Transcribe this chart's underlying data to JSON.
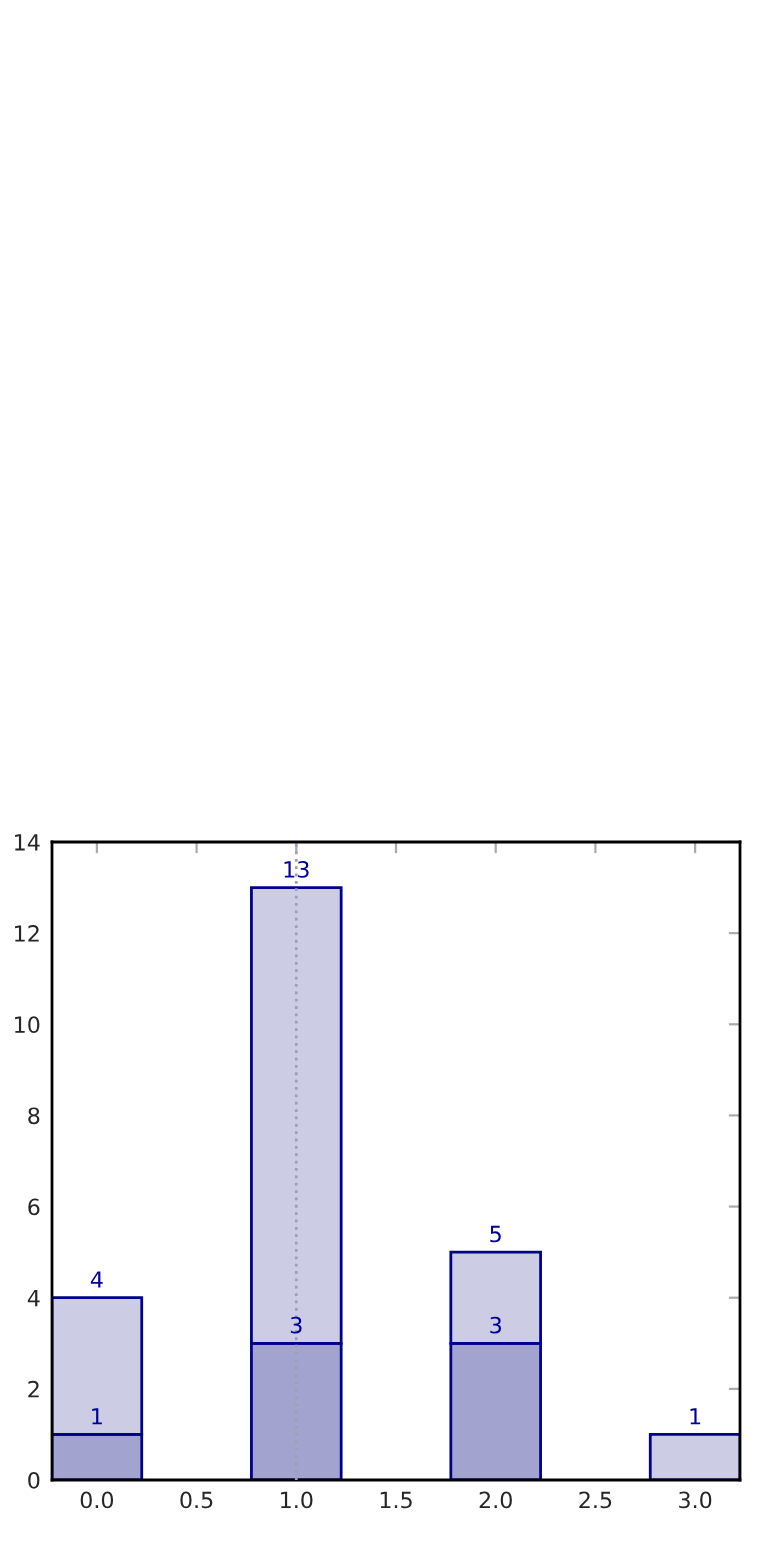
{
  "chart_data": {
    "type": "bar",
    "x": [
      0,
      1,
      2,
      3
    ],
    "stacked": true,
    "series": [
      {
        "color": "#a3a3d0",
        "values": [
          1,
          3,
          3,
          null
        ],
        "value_labels": [
          "1",
          "3",
          "3",
          null
        ]
      },
      {
        "color": "#cccce4",
        "values": [
          3,
          10,
          2,
          1
        ]
      }
    ],
    "totals": [
      "4",
      "13",
      "5",
      "1"
    ],
    "xlim": [
      -0.225,
      3.225
    ],
    "xticks": [
      {
        "value": 0,
        "label": "0.0"
      },
      {
        "value": 0.5,
        "label": "0.5"
      },
      {
        "value": 1,
        "label": "1.0"
      },
      {
        "value": 1.5,
        "label": "1.5"
      },
      {
        "value": 2,
        "label": "2.0"
      },
      {
        "value": 2.5,
        "label": "2.5"
      },
      {
        "value": 3,
        "label": "3.0"
      }
    ],
    "ylim": [
      0,
      14
    ],
    "yticks": [
      0,
      2,
      4,
      6,
      8,
      10,
      12,
      14
    ],
    "ref_lines": [
      {
        "axis": "x",
        "value": 1,
        "color": "#a0a0b0",
        "line_style": "dotted"
      }
    ],
    "grid": false,
    "legend": false
  }
}
